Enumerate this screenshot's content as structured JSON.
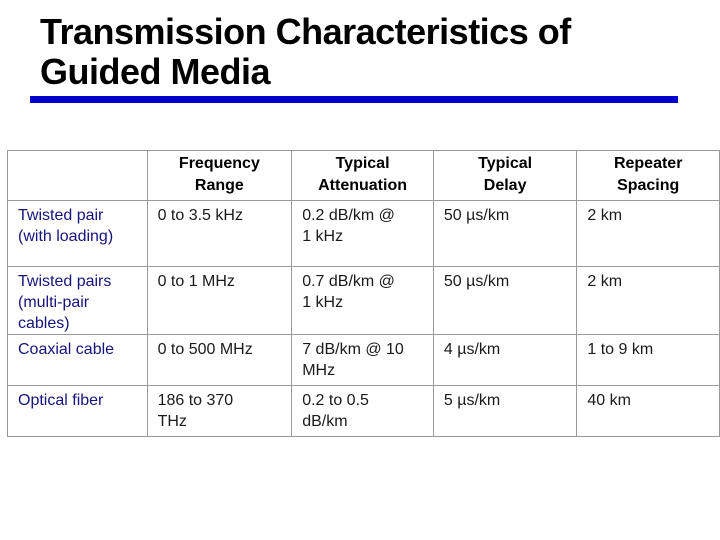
{
  "slide": {
    "title": {
      "line1": "Transmission Characteristics of",
      "line2": "Guided Media"
    },
    "colors": {
      "title_text": "#000000",
      "accent_rule": "#0000CC",
      "table_border": "#9A9A9A",
      "media_name_text": "#14147C",
      "body_text": "#1A1A1A",
      "background": "#FFFFFF"
    }
  },
  "table": {
    "headers": [
      "",
      "Frequency\nRange",
      "Typical\nAttenuation",
      "Typical\nDelay",
      "Repeater\nSpacing"
    ],
    "rows": [
      {
        "media": "Twisted pair\n(with loading)",
        "frequency_range": "0 to 3.5 kHz",
        "typical_attenuation": "0.2 dB/km @\n1 kHz",
        "typical_delay": "50 µs/km",
        "repeater_spacing": "2 km"
      },
      {
        "media": "Twisted pairs\n(multi-pair\ncables)",
        "frequency_range": "0 to 1 MHz",
        "typical_attenuation": "0.7 dB/km @\n1 kHz",
        "typical_delay": "50 µs/km",
        "repeater_spacing": "2 km"
      },
      {
        "media": "Coaxial cable",
        "frequency_range": "0 to 500 MHz",
        "typical_attenuation": "7 dB/km @ 10\nMHz",
        "typical_delay": "4 µs/km",
        "repeater_spacing": "1 to 9 km"
      },
      {
        "media": "Optical fiber",
        "frequency_range": "186 to 370\nTHz",
        "typical_attenuation": "0.2 to 0.5\ndB/km",
        "typical_delay": "5 µs/km",
        "repeater_spacing": "40 km"
      }
    ]
  }
}
